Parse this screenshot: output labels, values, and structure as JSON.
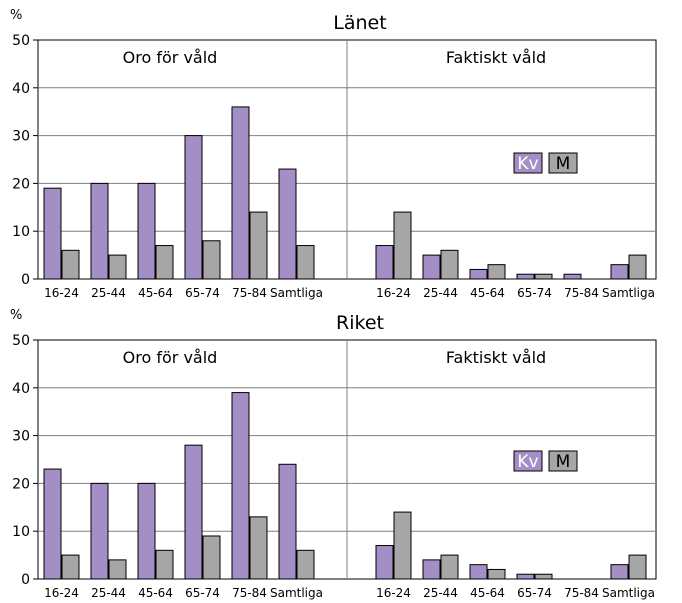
{
  "colors": {
    "kv": "#a48ec6",
    "m": "#a6a6a6",
    "axis": "#000000",
    "grid": "#7f7f7f"
  },
  "chart_data": [
    {
      "type": "bar",
      "title": "Länet",
      "ylabel": "%",
      "ylim": [
        0,
        50
      ],
      "yticks": [
        "0",
        "10",
        "20",
        "30",
        "40",
        "50"
      ],
      "grid": true,
      "legend_position": "middle-right",
      "legend": [
        {
          "key": "kv",
          "label": "Kv"
        },
        {
          "key": "m",
          "label": "M"
        }
      ],
      "panels": [
        {
          "label": "Oro för våld",
          "categories": [
            "16-24",
            "25-44",
            "45-64",
            "65-74",
            "75-84",
            "Samtliga"
          ],
          "series": [
            {
              "name": "Kv",
              "values": [
                19,
                20,
                20,
                30,
                36,
                23
              ]
            },
            {
              "name": "M",
              "values": [
                6,
                5,
                7,
                8,
                14,
                7
              ]
            }
          ]
        },
        {
          "label": "Faktiskt våld",
          "categories": [
            "16-24",
            "25-44",
            "45-64",
            "65-74",
            "75-84",
            "Samtliga"
          ],
          "series": [
            {
              "name": "Kv",
              "values": [
                7,
                5,
                2,
                1,
                1,
                3
              ]
            },
            {
              "name": "M",
              "values": [
                14,
                6,
                3,
                1,
                0,
                5
              ]
            }
          ]
        }
      ]
    },
    {
      "type": "bar",
      "title": "Riket",
      "ylabel": "%",
      "ylim": [
        0,
        50
      ],
      "yticks": [
        "0",
        "10",
        "20",
        "30",
        "40",
        "50"
      ],
      "grid": true,
      "legend_position": "middle-right",
      "legend": [
        {
          "key": "kv",
          "label": "Kv"
        },
        {
          "key": "m",
          "label": "M"
        }
      ],
      "panels": [
        {
          "label": "Oro för våld",
          "categories": [
            "16-24",
            "25-44",
            "45-64",
            "65-74",
            "75-84",
            "Samtliga"
          ],
          "series": [
            {
              "name": "Kv",
              "values": [
                23,
                20,
                20,
                28,
                39,
                24
              ]
            },
            {
              "name": "M",
              "values": [
                5,
                4,
                6,
                9,
                13,
                6
              ]
            }
          ]
        },
        {
          "label": "Faktiskt våld",
          "categories": [
            "16-24",
            "25-44",
            "45-64",
            "65-74",
            "75-84",
            "Samtliga"
          ],
          "series": [
            {
              "name": "Kv",
              "values": [
                7,
                4,
                3,
                1,
                0,
                3
              ]
            },
            {
              "name": "M",
              "values": [
                14,
                5,
                2,
                1,
                0,
                5
              ]
            }
          ]
        }
      ]
    }
  ]
}
